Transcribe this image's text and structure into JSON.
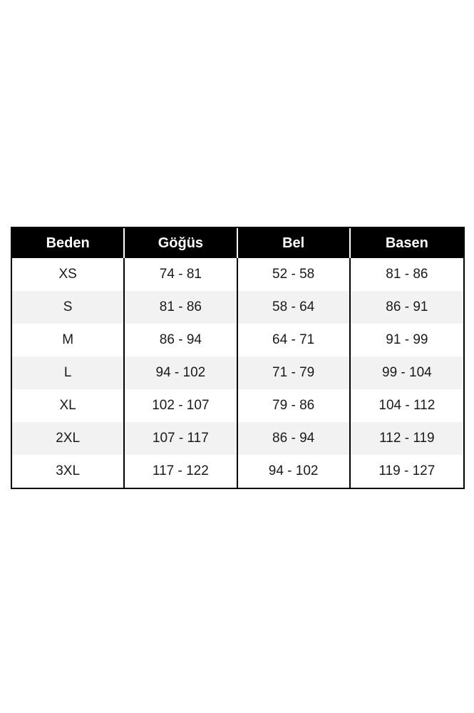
{
  "chart_data": {
    "type": "table",
    "columns": [
      "Beden",
      "Göğüs",
      "Bel",
      "Basen"
    ],
    "rows": [
      [
        "XS",
        "74 - 81",
        "52 - 58",
        "81 - 86"
      ],
      [
        "S",
        "81 - 86",
        "58 - 64",
        "86 - 91"
      ],
      [
        "M",
        "86 - 94",
        "64 - 71",
        "91 - 99"
      ],
      [
        "L",
        "94 - 102",
        "71 - 79",
        "99 - 104"
      ],
      [
        "XL",
        "102 - 107",
        "79 - 86",
        "104 - 112"
      ],
      [
        "2XL",
        "107 - 117",
        "86 - 94",
        "112 - 119"
      ],
      [
        "3XL",
        "117 - 122",
        "94 - 102",
        "119 - 127"
      ]
    ],
    "layout": {
      "legend": "none",
      "grid": "vertical-dividers-only",
      "row_striping": "even-rows-gray"
    },
    "colors": {
      "header_bg": "#000000",
      "header_text": "#ffffff",
      "header_divider": "#ffffff",
      "row_bg": "#ffffff",
      "row_alt_bg": "#f2f2f2",
      "cell_text": "#1a1a1a",
      "border": "#000000",
      "page_bg": "#ffffff"
    }
  }
}
